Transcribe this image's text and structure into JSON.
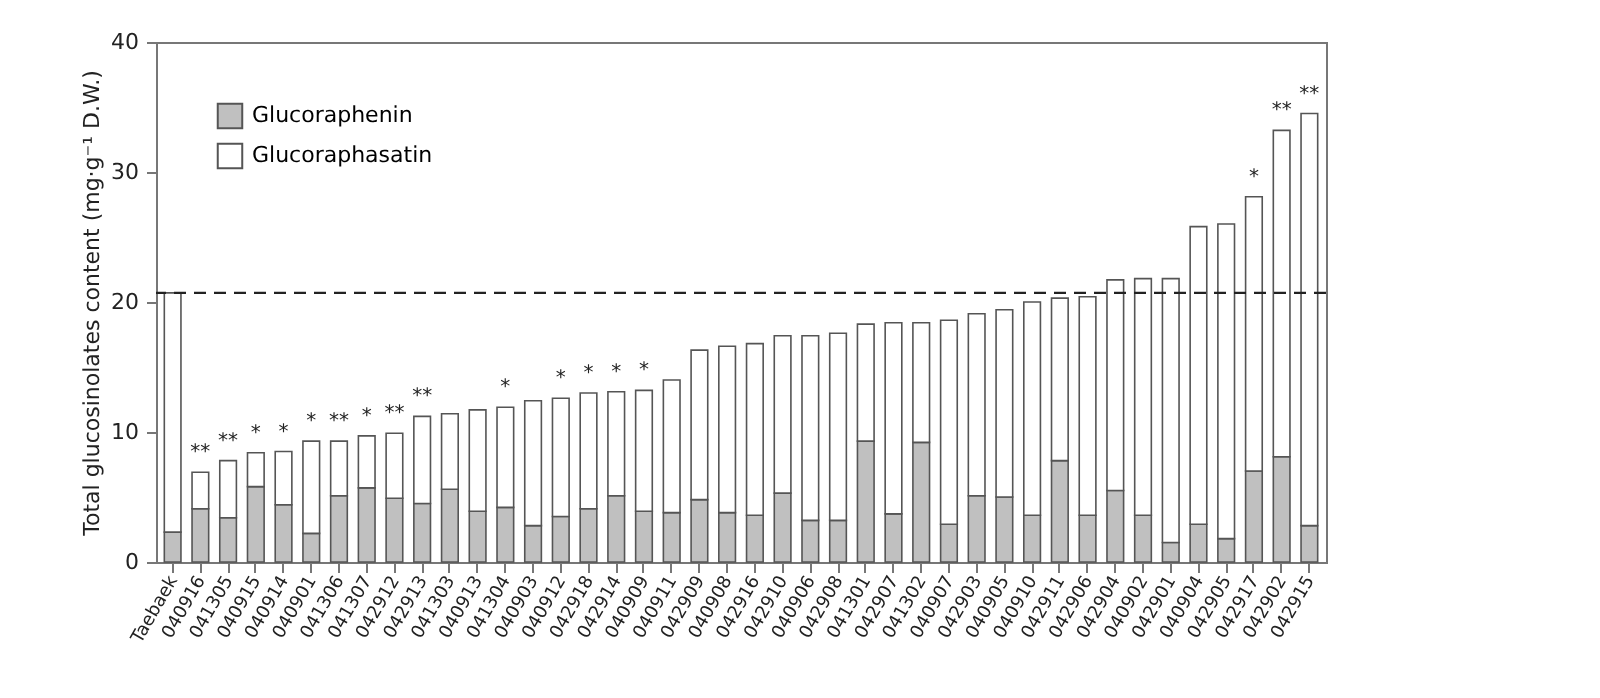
{
  "chart_data": {
    "type": "bar",
    "stacked": true,
    "ylabel": "Total glucosinolates content (mg·g⁻¹ D.W.)",
    "categories": [
      "Taebaek",
      "040916",
      "041305",
      "040915",
      "040914",
      "040901",
      "041306",
      "041307",
      "042912",
      "042913",
      "041303",
      "040913",
      "041304",
      "040903",
      "040912",
      "042918",
      "042914",
      "040909",
      "040911",
      "042909",
      "040908",
      "042916",
      "042910",
      "040906",
      "042908",
      "041301",
      "042907",
      "041302",
      "040907",
      "042903",
      "040905",
      "040910",
      "042911",
      "042906",
      "042904",
      "040902",
      "042901",
      "040904",
      "042905",
      "042917",
      "042902",
      "042915"
    ],
    "series": [
      {
        "name": "Glucoraphenin",
        "color": "#c0c0c0",
        "values": [
          2.3,
          4.1,
          3.4,
          5.8,
          4.4,
          2.2,
          5.1,
          5.7,
          4.9,
          4.5,
          5.6,
          3.9,
          4.2,
          2.8,
          3.5,
          4.1,
          5.1,
          3.9,
          3.8,
          4.8,
          3.8,
          3.6,
          5.3,
          3.2,
          3.2,
          9.3,
          3.7,
          9.2,
          2.9,
          5.1,
          5.0,
          3.6,
          7.8,
          3.6,
          5.5,
          3.6,
          1.5,
          2.9,
          1.8,
          7.0,
          8.1,
          2.8
        ]
      },
      {
        "name": "Glucoraphasatin",
        "color": "#ffffff",
        "values": [
          18.4,
          2.8,
          4.4,
          2.6,
          4.1,
          7.1,
          4.2,
          4.0,
          5.0,
          6.7,
          5.8,
          7.8,
          7.7,
          9.6,
          9.1,
          8.9,
          8.0,
          9.3,
          10.2,
          11.5,
          12.8,
          13.2,
          12.1,
          14.2,
          14.4,
          9.0,
          14.7,
          9.2,
          15.7,
          14.0,
          14.4,
          16.4,
          12.5,
          16.8,
          16.2,
          18.2,
          20.3,
          22.9,
          24.2,
          21.1,
          25.1,
          31.7
        ]
      }
    ],
    "ylim": [
      0,
      40
    ],
    "yticks": [
      0,
      10,
      20,
      30,
      40
    ],
    "grid": false,
    "legend": "top left",
    "ref_lines": [
      {
        "axis": "y",
        "value": 20.7,
        "color": "#222222",
        "line_style": "dashed"
      }
    ],
    "annotations": [
      {
        "text": "**",
        "x": "040916",
        "y": 6.9
      },
      {
        "text": "**",
        "x": "041305",
        "y": 7.8
      },
      {
        "text": "*",
        "x": "040915",
        "y": 8.4
      },
      {
        "text": "*",
        "x": "040914",
        "y": 8.5
      },
      {
        "text": "*",
        "x": "040901",
        "y": 9.3
      },
      {
        "text": "**",
        "x": "041306",
        "y": 9.3
      },
      {
        "text": "*",
        "x": "041307",
        "y": 9.7
      },
      {
        "text": "**",
        "x": "042912",
        "y": 9.9
      },
      {
        "text": "**",
        "x": "042913",
        "y": 11.2
      },
      {
        "text": "*",
        "x": "041304",
        "y": 11.9
      },
      {
        "text": "*",
        "x": "040912",
        "y": 12.6
      },
      {
        "text": "*",
        "x": "042918",
        "y": 13.0
      },
      {
        "text": "*",
        "x": "042914",
        "y": 13.1
      },
      {
        "text": "*",
        "x": "040909",
        "y": 13.2
      },
      {
        "text": "*",
        "x": "042917",
        "y": 28.1
      },
      {
        "text": "**",
        "x": "042902",
        "y": 33.2
      },
      {
        "text": "**",
        "x": "042915",
        "y": 34.5
      }
    ]
  }
}
